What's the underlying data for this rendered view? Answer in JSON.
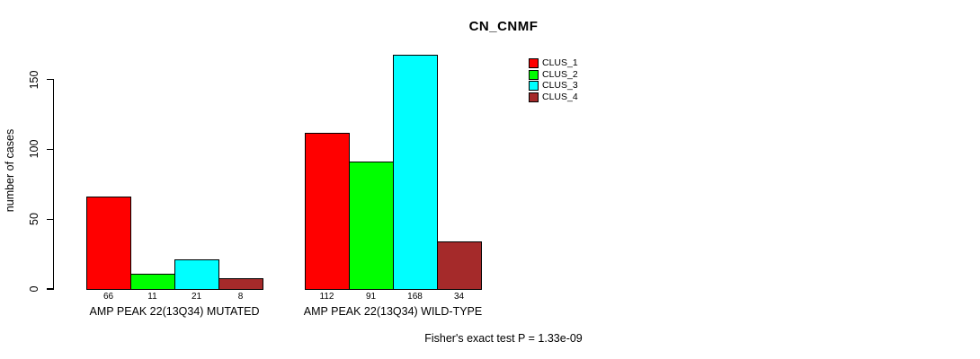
{
  "chart_data": {
    "type": "bar",
    "title": "CN_CNMF",
    "ylabel": "number of cases",
    "xlabel": "",
    "ylim": [
      0,
      150
    ],
    "yticks": [
      0,
      50,
      100,
      150
    ],
    "grid": false,
    "legend_position": "right",
    "categories": [
      "AMP PEAK 22(13Q34) MUTATED",
      "AMP PEAK 22(13Q34) WILD-TYPE"
    ],
    "series": [
      {
        "name": "CLUS_1",
        "color": "#FF0000",
        "values": [
          66,
          112
        ]
      },
      {
        "name": "CLUS_2",
        "color": "#00FF00",
        "values": [
          11,
          91
        ]
      },
      {
        "name": "CLUS_3",
        "color": "#00FFFF",
        "values": [
          21,
          168
        ]
      },
      {
        "name": "CLUS_4",
        "color": "#A52A2A",
        "values": [
          8,
          34
        ]
      }
    ],
    "annotation": "Fisher's exact test P = 1.33e-09"
  }
}
